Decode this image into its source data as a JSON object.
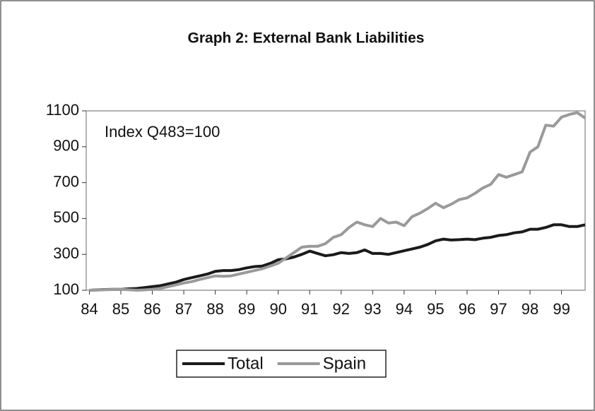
{
  "chart_data": {
    "type": "line",
    "title": "Graph 2: External Bank Liabilities",
    "annotation": "Index Q483=100",
    "x": [
      84,
      84.25,
      84.5,
      84.75,
      85,
      85.25,
      85.5,
      85.75,
      86,
      86.25,
      86.5,
      86.75,
      87,
      87.25,
      87.5,
      87.75,
      88,
      88.25,
      88.5,
      88.75,
      89,
      89.25,
      89.5,
      89.75,
      90,
      90.25,
      90.5,
      90.75,
      91,
      91.25,
      91.5,
      91.75,
      92,
      92.25,
      92.5,
      92.75,
      93,
      93.25,
      93.5,
      93.75,
      94,
      94.25,
      94.5,
      94.75,
      95,
      95.25,
      95.5,
      95.75,
      96,
      96.25,
      96.5,
      96.75,
      97,
      97.25,
      97.5,
      97.75,
      98,
      98.25,
      98.5,
      98.75,
      99,
      99.25,
      99.5,
      99.75
    ],
    "series": [
      {
        "name": "Total",
        "color": "#1a1a1a",
        "values": [
          100,
          102,
          104,
          105,
          105,
          108,
          110,
          115,
          120,
          125,
          135,
          145,
          160,
          170,
          180,
          190,
          205,
          210,
          210,
          215,
          225,
          232,
          235,
          250,
          270,
          275,
          285,
          300,
          318,
          305,
          292,
          298,
          310,
          305,
          310,
          325,
          305,
          305,
          300,
          310,
          320,
          330,
          340,
          355,
          375,
          385,
          380,
          382,
          385,
          382,
          390,
          395,
          405,
          410,
          420,
          425,
          440,
          440,
          450,
          465,
          465,
          455,
          455,
          465
        ]
      },
      {
        "name": "Spain",
        "color": "#9a9a9a",
        "values": [
          100,
          101,
          103,
          104,
          105,
          103,
          100,
          102,
          105,
          110,
          120,
          130,
          140,
          148,
          160,
          170,
          180,
          178,
          180,
          190,
          200,
          210,
          220,
          235,
          250,
          280,
          310,
          340,
          345,
          345,
          360,
          395,
          410,
          450,
          480,
          465,
          455,
          500,
          475,
          480,
          460,
          510,
          530,
          555,
          585,
          560,
          580,
          605,
          615,
          640,
          670,
          690,
          745,
          730,
          745,
          760,
          870,
          900,
          1020,
          1015,
          1065,
          1080,
          1090,
          1060
        ]
      }
    ],
    "xlim": [
      83.9,
      99.75
    ],
    "xticks": [
      84,
      85,
      86,
      87,
      88,
      89,
      90,
      91,
      92,
      93,
      94,
      95,
      96,
      97,
      98,
      99
    ],
    "ylim": [
      100,
      1100
    ],
    "yticks": [
      100,
      300,
      500,
      700,
      900,
      1100
    ],
    "grid": false,
    "legend": "bottom"
  }
}
